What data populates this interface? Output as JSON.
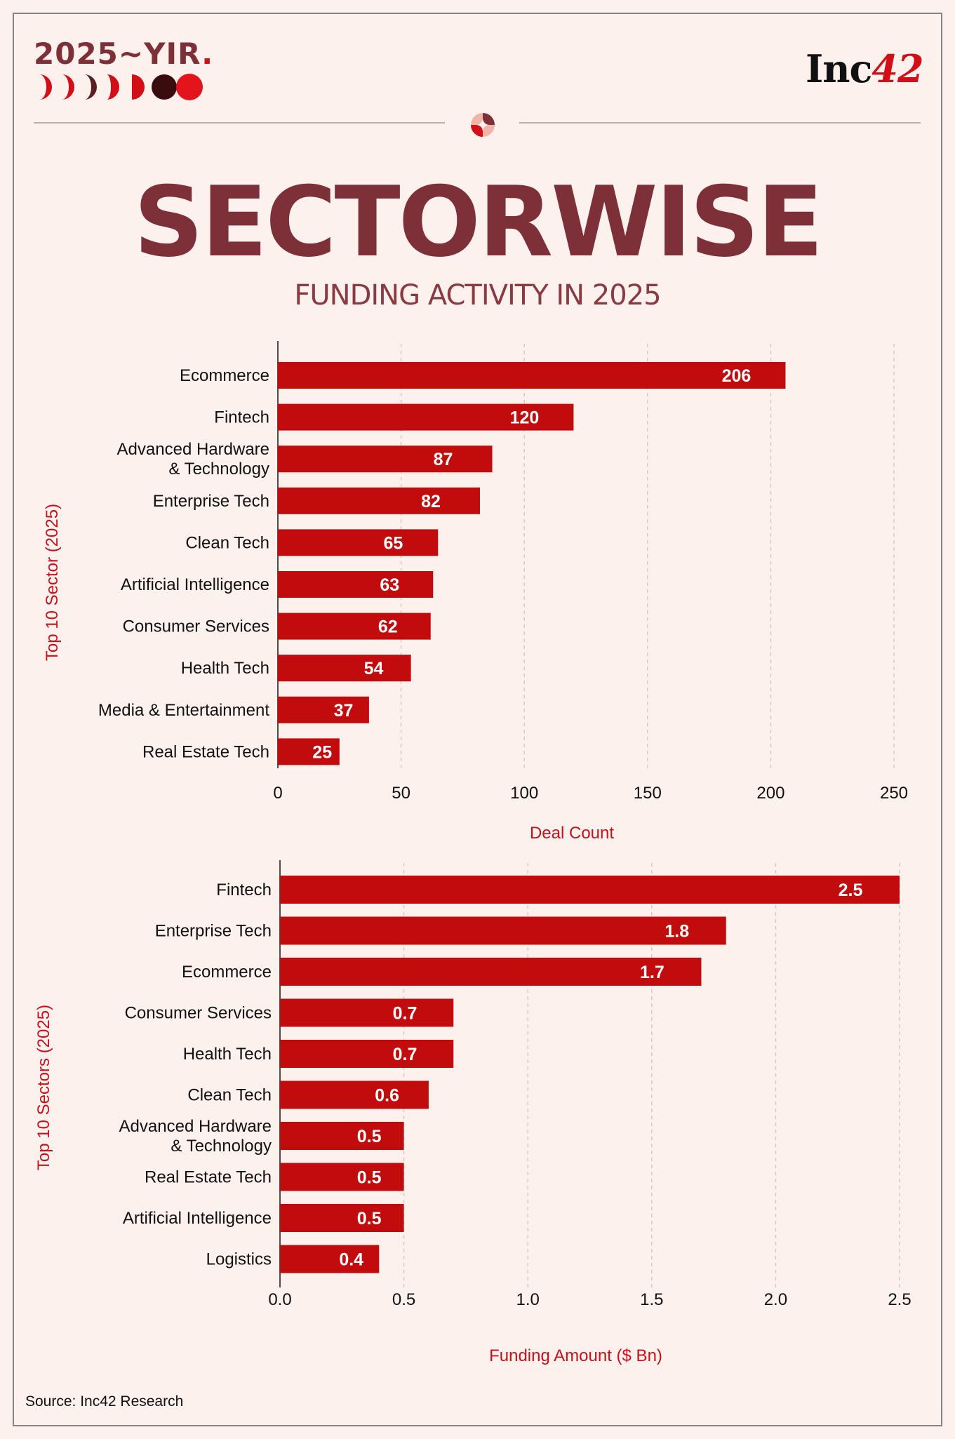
{
  "header": {
    "badge_text": "2025~YIR",
    "badge_dot": ".",
    "brand_prefix": "Inc",
    "brand_number": "42",
    "moon_icons": [
      "half-moon-red",
      "half-moon-red",
      "half-moon-dark",
      "half-moon-red",
      "half-moon-red",
      "moon-dark",
      "circle-red"
    ]
  },
  "title": "SECTORWISE",
  "subtitle": "FUNDING ACTIVITY IN 2025",
  "colors": {
    "bar": "#c10b0d",
    "title": "#7e3038",
    "axis_title": "#c4121a",
    "background": "#fdf1ee"
  },
  "chart_data": [
    {
      "type": "bar",
      "orientation": "horizontal",
      "categories": [
        "Ecommerce",
        "Fintech",
        "Advanced Hardware & Technology",
        "Enterprise Tech",
        "Clean Tech",
        "Artificial Intelligence",
        "Consumer Services",
        "Health Tech",
        "Media & Entertainment",
        "Real Estate Tech"
      ],
      "category_lines": [
        [
          "Ecommerce"
        ],
        [
          "Fintech"
        ],
        [
          "Advanced Hardware",
          "& Technology"
        ],
        [
          "Enterprise Tech"
        ],
        [
          "Clean Tech"
        ],
        [
          "Artificial Intelligence"
        ],
        [
          "Consumer Services"
        ],
        [
          "Health Tech"
        ],
        [
          "Media & Entertainment"
        ],
        [
          "Real Estate Tech"
        ]
      ],
      "values": [
        206,
        120,
        87,
        82,
        65,
        63,
        62,
        54,
        37,
        25
      ],
      "value_labels": [
        "206",
        "120",
        "87",
        "82",
        "65",
        "63",
        "62",
        "54",
        "37",
        "25"
      ],
      "xlim": [
        0,
        250
      ],
      "xticks": [
        0,
        50,
        100,
        150,
        200,
        250
      ],
      "xtick_labels": [
        "0",
        "50",
        "100",
        "150",
        "200",
        "250"
      ],
      "xlabel": "Deal Count",
      "ylabel": "Top 10 Sector (2025)",
      "grid": "vertical dashed"
    },
    {
      "type": "bar",
      "orientation": "horizontal",
      "categories": [
        "Fintech",
        "Enterprise Tech",
        "Ecommerce",
        "Consumer Services",
        "Health Tech",
        "Clean Tech",
        "Advanced Hardware & Technology",
        "Real Estate Tech",
        "Artificial Intelligence",
        "Logistics"
      ],
      "category_lines": [
        [
          "Fintech"
        ],
        [
          "Enterprise Tech"
        ],
        [
          "Ecommerce"
        ],
        [
          "Consumer Services"
        ],
        [
          "Health Tech"
        ],
        [
          "Clean Tech"
        ],
        [
          "Advanced Hardware",
          "& Technology"
        ],
        [
          "Real Estate Tech"
        ],
        [
          "Artificial Intelligence"
        ],
        [
          "Logistics"
        ]
      ],
      "values": [
        2.5,
        1.8,
        1.7,
        0.7,
        0.7,
        0.6,
        0.5,
        0.5,
        0.5,
        0.4
      ],
      "value_labels": [
        "2.5",
        "1.8",
        "1.7",
        "0.7",
        "0.7",
        "0.6",
        "0.5",
        "0.5",
        "0.5",
        "0.4"
      ],
      "xlim": [
        0,
        2.5
      ],
      "xticks": [
        0,
        0.5,
        1,
        1.5,
        2,
        2.5
      ],
      "xtick_labels": [
        "0.0",
        "0.5",
        "1.0",
        "1.5",
        "2.0",
        "2.5"
      ],
      "xlabel": "Funding Amount ($ Bn)",
      "ylabel": "Top 10 Sectors (2025)",
      "grid": "vertical dashed"
    }
  ],
  "source": "Source: Inc42 Research"
}
